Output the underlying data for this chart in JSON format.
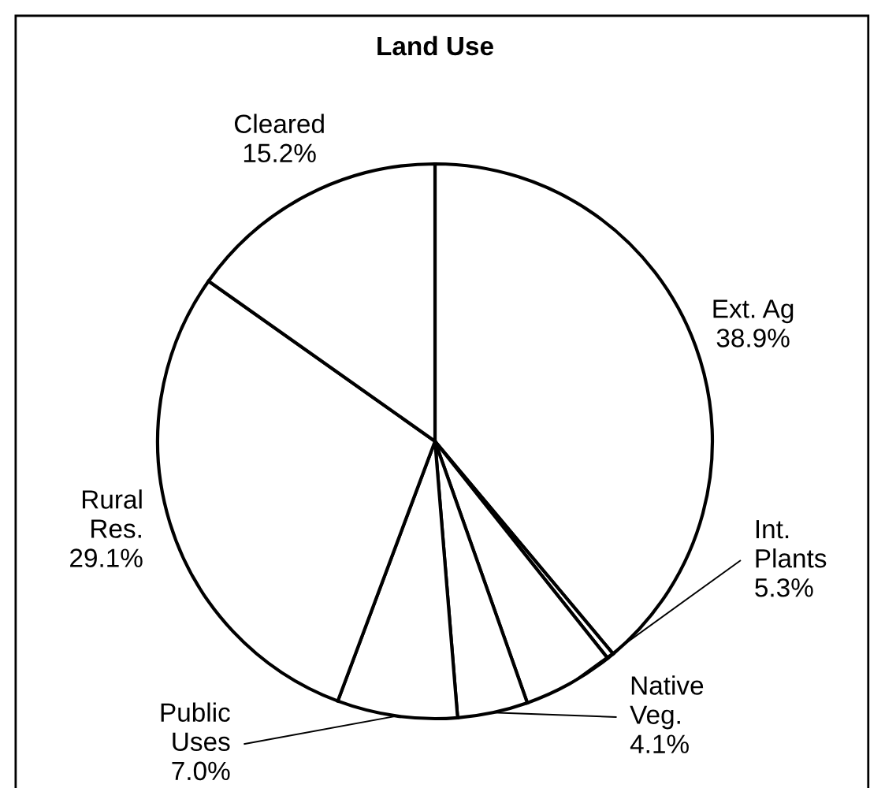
{
  "chart_data": {
    "type": "pie",
    "title": "Land Use",
    "categories": [
      "Ext. Ag",
      null,
      "Int. Plants",
      "Native Veg.",
      "Public Uses",
      "Rural Res.",
      "Cleared"
    ],
    "values": [
      38.9,
      0.4,
      5.3,
      4.1,
      7.0,
      29.1,
      15.2
    ],
    "value_labels": [
      "38.9%",
      null,
      "5.3%",
      "4.1%",
      "7.0%",
      "29.1%",
      "15.2%"
    ],
    "colors": [
      "#ffffff",
      "#ffffff",
      "#ffffff",
      "#ffffff",
      "#ffffff",
      "#ffffff",
      "#ffffff"
    ],
    "legend": false
  }
}
